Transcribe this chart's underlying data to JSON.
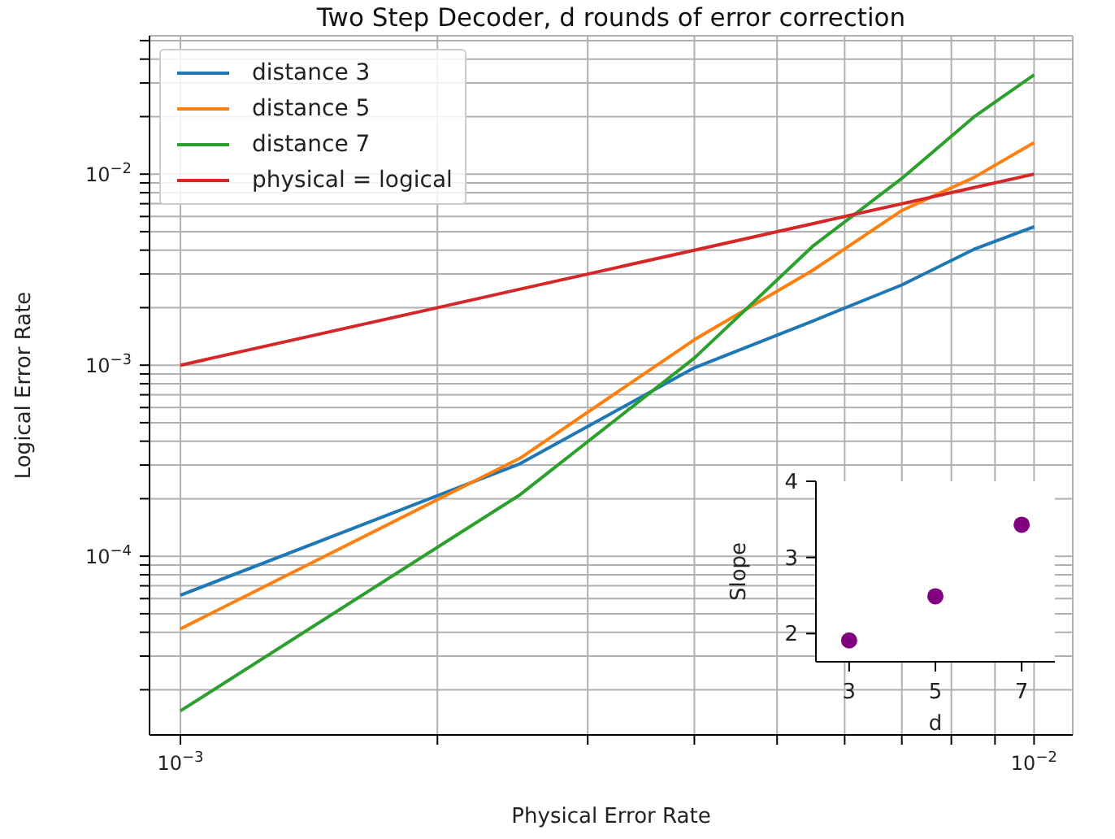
{
  "chart_data": [
    {
      "type": "line",
      "title": "Two Step Decoder, d rounds of error correction",
      "xlabel": "Physical Error Rate",
      "ylabel": "Logical Error Rate",
      "log": "xy",
      "grid": true,
      "legend": "top left",
      "line_style": "solid",
      "x": [
        0.001,
        0.0025,
        0.004,
        0.0055,
        0.007,
        0.0085,
        0.01
      ],
      "xlim": [
        0.00092,
        0.0111
      ],
      "xticks": [
        {
          "value": 0.001,
          "label": "10$^{−3}$"
        },
        {
          "value": 0.002,
          "label": null
        },
        {
          "value": 0.003,
          "label": null
        },
        {
          "value": 0.004,
          "label": null
        },
        {
          "value": 0.005,
          "label": null
        },
        {
          "value": 0.006,
          "label": null
        },
        {
          "value": 0.007,
          "label": null
        },
        {
          "value": 0.008,
          "label": null
        },
        {
          "value": 0.009,
          "label": null
        },
        {
          "value": 0.01,
          "label": "10$^{−2}$"
        }
      ],
      "ylim": [
        1.16e-05,
        0.053
      ],
      "yticks": [
        {
          "value": 2e-05,
          "label": null
        },
        {
          "value": 3e-05,
          "label": null
        },
        {
          "value": 4e-05,
          "label": null
        },
        {
          "value": 5e-05,
          "label": null
        },
        {
          "value": 6e-05,
          "label": null
        },
        {
          "value": 7e-05,
          "label": null
        },
        {
          "value": 8e-05,
          "label": null
        },
        {
          "value": 9e-05,
          "label": null
        },
        {
          "value": 0.0001,
          "label": "10$^{−4}$"
        },
        {
          "value": 0.0002,
          "label": null
        },
        {
          "value": 0.0003,
          "label": null
        },
        {
          "value": 0.0004,
          "label": null
        },
        {
          "value": 0.0005,
          "label": null
        },
        {
          "value": 0.0006,
          "label": null
        },
        {
          "value": 0.0007,
          "label": null
        },
        {
          "value": 0.0008,
          "label": null
        },
        {
          "value": 0.0009,
          "label": null
        },
        {
          "value": 0.001,
          "label": "10$^{−3}$"
        },
        {
          "value": 0.002,
          "label": null
        },
        {
          "value": 0.003,
          "label": null
        },
        {
          "value": 0.004,
          "label": null
        },
        {
          "value": 0.005,
          "label": null
        },
        {
          "value": 0.006,
          "label": null
        },
        {
          "value": 0.007,
          "label": null
        },
        {
          "value": 0.008,
          "label": null
        },
        {
          "value": 0.009,
          "label": null
        },
        {
          "value": 0.01,
          "label": "10$^{−2}$"
        },
        {
          "value": 0.02,
          "label": null
        },
        {
          "value": 0.03,
          "label": null
        },
        {
          "value": 0.04,
          "label": null
        },
        {
          "value": 0.05,
          "label": null
        }
      ],
      "series": [
        {
          "name": "distance 3",
          "color": "#1f77b4",
          "values": [
            6.25e-05,
            0.000305,
            0.00097,
            0.0017,
            0.00263,
            0.00404,
            0.0053
          ]
        },
        {
          "name": "distance 5",
          "color": "#ff7f0e",
          "values": [
            4.17e-05,
            0.000326,
            0.00136,
            0.00313,
            0.00645,
            0.0096,
            0.0146
          ]
        },
        {
          "name": "distance 7",
          "color": "#2ca02c",
          "values": [
            1.55e-05,
            0.00021,
            0.00109,
            0.00418,
            0.0095,
            0.0199,
            0.0331
          ]
        },
        {
          "name": "physical = logical",
          "color": "#d62728",
          "values": [
            0.001,
            0.0025,
            0.004,
            0.0055,
            0.007,
            0.0085,
            0.01
          ]
        }
      ]
    },
    {
      "type": "scatter",
      "xlabel": "d",
      "ylabel": "Slope",
      "marker": "circle",
      "color": "#800080",
      "x": [
        3,
        5,
        7
      ],
      "values": [
        1.91,
        2.49,
        3.43
      ],
      "xlim": [
        2.23,
        7.77
      ],
      "xticks": [
        3,
        5,
        7
      ],
      "ylim": [
        1.63,
        4
      ],
      "yticks": [
        2,
        3,
        4
      ]
    }
  ]
}
